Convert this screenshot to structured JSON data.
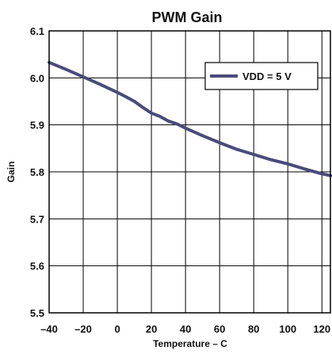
{
  "chart_data": {
    "type": "line",
    "title": "PWM Gain",
    "xlabel": "Temperature – C",
    "ylabel": "Gain",
    "xlim": [
      -40,
      125
    ],
    "ylim": [
      5.5,
      6.1
    ],
    "x_ticks": [
      -40,
      -20,
      0,
      20,
      40,
      60,
      80,
      100,
      120
    ],
    "x_tick_labels": [
      "–40",
      "–20",
      "0",
      "20",
      "40",
      "60",
      "80",
      "100",
      "120"
    ],
    "y_ticks": [
      5.5,
      5.6,
      5.7,
      5.8,
      5.9,
      6.0,
      6.1
    ],
    "y_tick_labels": [
      "5.5",
      "5.6",
      "5.7",
      "5.8",
      "5.9",
      "6.0",
      "6.1"
    ],
    "grid": true,
    "legend_position": "top-right",
    "series": [
      {
        "name": "VDD = 5 V",
        "color": "#4a4a7a",
        "x": [
          -40,
          -30,
          -20,
          -10,
          0,
          5,
          10,
          15,
          20,
          25,
          30,
          35,
          40,
          50,
          60,
          70,
          80,
          90,
          100,
          110,
          120,
          125
        ],
        "y": [
          6.033,
          6.018,
          6.002,
          5.986,
          5.969,
          5.96,
          5.95,
          5.937,
          5.925,
          5.918,
          5.908,
          5.902,
          5.893,
          5.877,
          5.862,
          5.848,
          5.837,
          5.826,
          5.817,
          5.806,
          5.796,
          5.792
        ]
      }
    ]
  }
}
